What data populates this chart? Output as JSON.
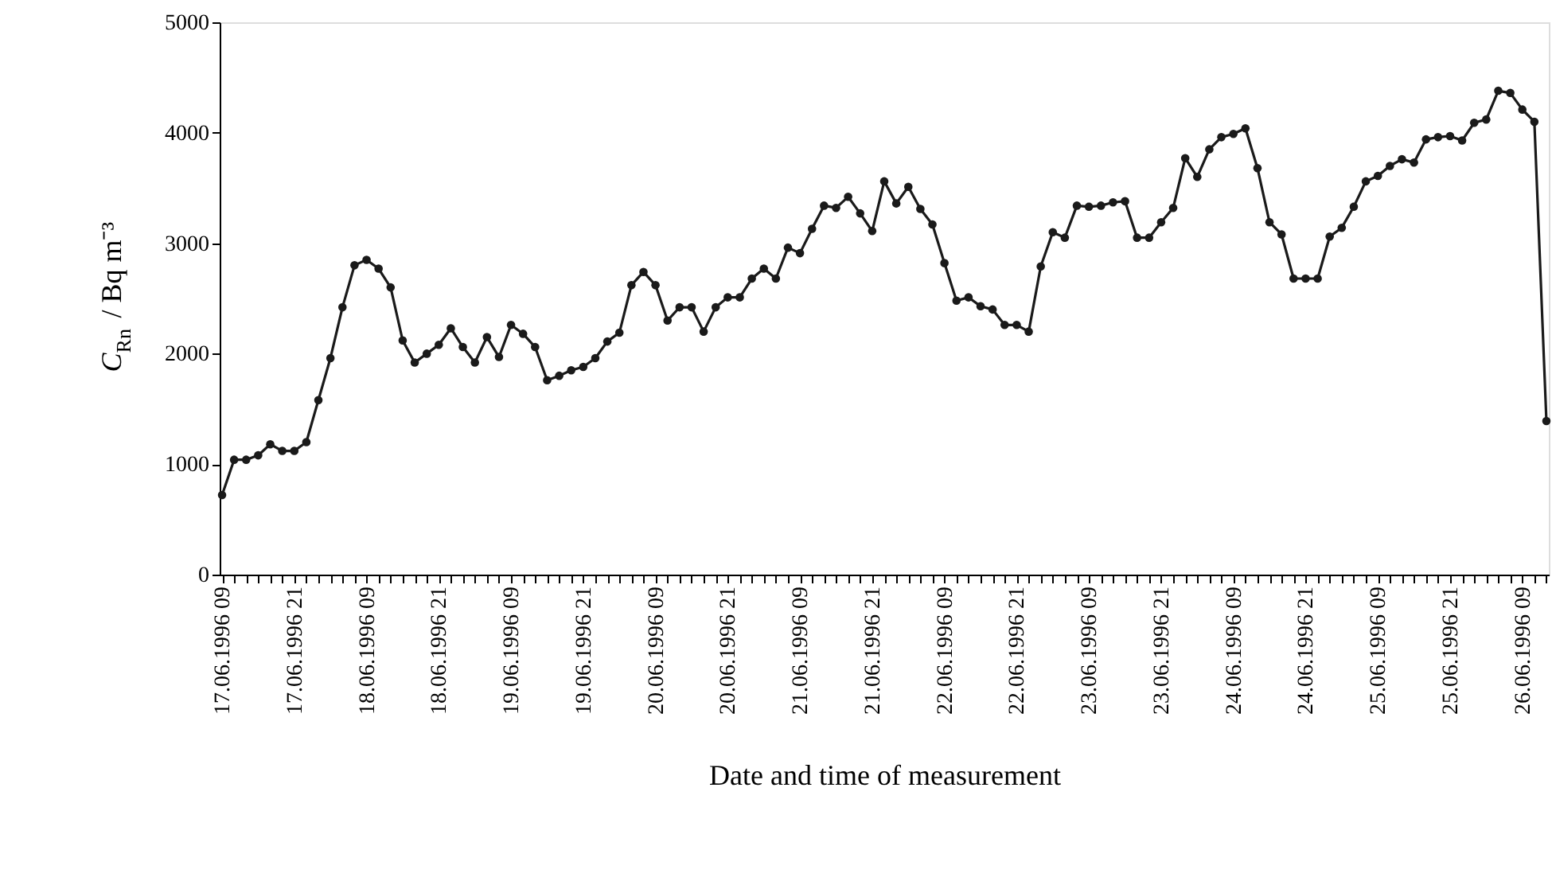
{
  "chart_data": {
    "type": "line",
    "xlabel": "Date and time of measurement",
    "ylabel": "C$_{Rn}$ / Bq m⁻³",
    "categories": [
      "17.06.1996 09",
      null,
      null,
      null,
      null,
      null,
      "17.06.1996 21",
      null,
      null,
      null,
      null,
      null,
      "18.06.1996 09",
      null,
      null,
      null,
      null,
      null,
      "18.06.1996 21",
      null,
      null,
      null,
      null,
      null,
      "19.06.1996 09",
      null,
      null,
      null,
      null,
      null,
      "19.06.1996 21",
      null,
      null,
      null,
      null,
      null,
      "20.06.1996 09",
      null,
      null,
      null,
      null,
      null,
      "20.06.1996 21",
      null,
      null,
      null,
      null,
      null,
      "21.06.1996 09",
      null,
      null,
      null,
      null,
      null,
      "21.06.1996 21",
      null,
      null,
      null,
      null,
      null,
      "22.06.1996 09",
      null,
      null,
      null,
      null,
      null,
      "22.06.1996 21",
      null,
      null,
      null,
      null,
      null,
      "23.06.1996 09",
      null,
      null,
      null,
      null,
      null,
      "23.06.1996 21",
      null,
      null,
      null,
      null,
      null,
      "24.06.1996 09",
      null,
      null,
      null,
      null,
      null,
      "24.06.1996 21",
      null,
      null,
      null,
      null,
      null,
      "25.06.1996 09",
      null,
      null,
      null,
      null,
      null,
      "25.06.1996 21",
      null,
      null,
      null,
      null,
      null,
      "26.06.1996 09",
      null,
      null
    ],
    "series": [
      {
        "color": "#1a1a1a",
        "values": [
          720,
          1040,
          1040,
          1080,
          1180,
          1120,
          1120,
          1200,
          1580,
          1960,
          2420,
          2800,
          2850,
          2770,
          2600,
          2120,
          1920,
          2000,
          2080,
          2230,
          2060,
          1920,
          2150,
          1970,
          2260,
          2180,
          2060,
          1760,
          1800,
          1850,
          1880,
          1960,
          2110,
          2190,
          2620,
          2740,
          2620,
          2300,
          2420,
          2420,
          2200,
          2420,
          2510,
          2510,
          2680,
          2770,
          2680,
          2960,
          2910,
          3130,
          3340,
          3320,
          3420,
          3270,
          3110,
          3560,
          3360,
          3510,
          3310,
          3170,
          2820,
          2480,
          2510,
          2430,
          2400,
          2260,
          2260,
          2200,
          2790,
          3100,
          3050,
          3340,
          3330,
          3340,
          3370,
          3380,
          3050,
          3050,
          3190,
          3320,
          3770,
          3600,
          3850,
          3960,
          3990,
          4040,
          3680,
          3190,
          3080,
          2680,
          2680,
          2680,
          3060,
          3140,
          3330,
          3560,
          3610,
          3700,
          3760,
          3730,
          3940,
          3960,
          3970,
          3930,
          4090,
          4120,
          4380,
          4360,
          4210,
          4100,
          1390
        ]
      }
    ],
    "ylim": [
      0,
      5000
    ],
    "yticks": [
      0,
      1000,
      2000,
      3000,
      4000,
      5000
    ],
    "grid": false,
    "marker": "circle",
    "line_style": "solid"
  }
}
